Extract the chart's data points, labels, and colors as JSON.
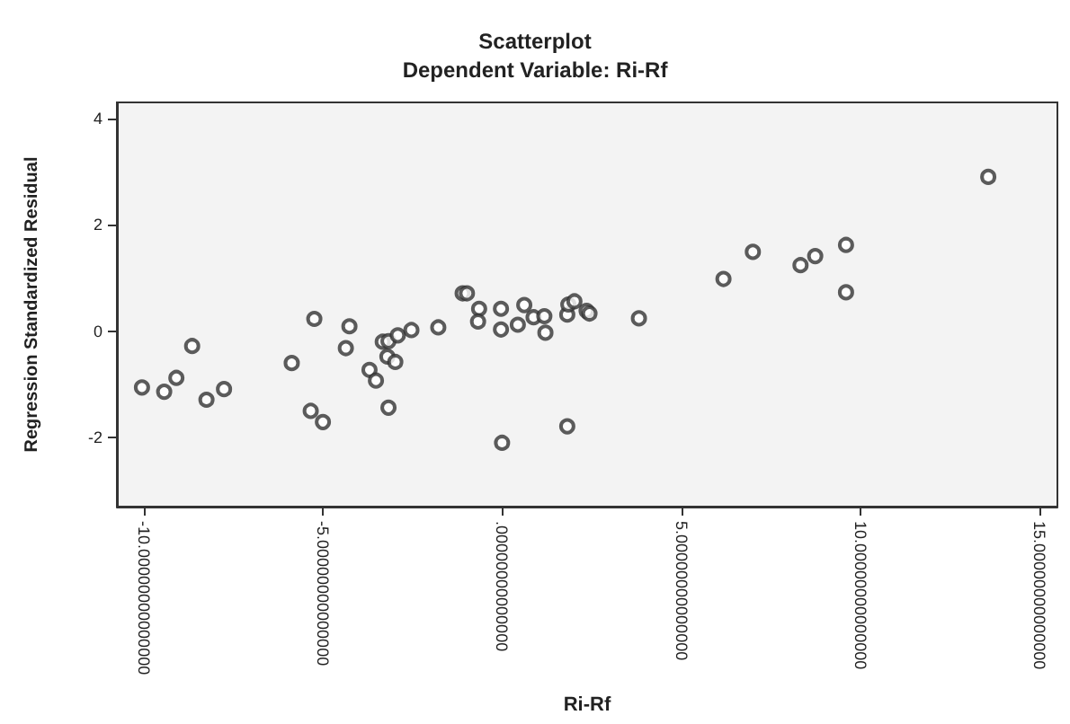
{
  "chart_data": {
    "type": "scatter",
    "title": "Scatterplot",
    "subtitle": "Dependent Variable: Ri-Rf",
    "xlabel": "Ri-Rf",
    "ylabel": "Regression Standardized Residual",
    "marker": "circle",
    "grid": false,
    "xlim": [
      -10.75,
      15.5
    ],
    "ylim": [
      -3.3,
      4.3
    ],
    "xticks": [
      {
        "value": -10,
        "label": "-10.00000000000000"
      },
      {
        "value": -5,
        "label": "-5.00000000000000"
      },
      {
        "value": 0,
        "label": ".00000000000000"
      },
      {
        "value": 5,
        "label": "5.00000000000000"
      },
      {
        "value": 10,
        "label": "10.00000000000000"
      },
      {
        "value": 15,
        "label": "15.00000000000000"
      }
    ],
    "yticks": [
      -2,
      0,
      2,
      4
    ],
    "series": [
      {
        "color": "#333333",
        "x": [
          -10.05,
          -9.43,
          -9.09,
          -8.65,
          -8.25,
          -7.76,
          -5.87,
          -5.24,
          -5.34,
          -5.0,
          -4.26,
          -4.36,
          -3.7,
          -3.52,
          -3.33,
          -3.17,
          -2.91,
          -3.2,
          -2.98,
          -3.17,
          -2.53,
          -1.78,
          -1.1,
          -0.98,
          -0.64,
          -0.67,
          -0.03,
          -0.03,
          0.0,
          0.44,
          0.62,
          0.88,
          1.18,
          1.21,
          1.82,
          1.82,
          1.85,
          2.02,
          2.36,
          2.44,
          3.82,
          6.18,
          7.0,
          8.33,
          8.74,
          9.6,
          9.6,
          13.57
        ],
        "values": [
          -1.06,
          -1.14,
          -0.88,
          -0.28,
          -1.29,
          -1.09,
          -0.6,
          0.23,
          -1.5,
          -1.71,
          0.09,
          -0.32,
          -0.73,
          -0.93,
          -0.2,
          -0.19,
          -0.08,
          -0.48,
          -0.58,
          -1.44,
          0.02,
          0.07,
          0.71,
          0.71,
          0.42,
          0.18,
          0.42,
          0.03,
          -2.1,
          0.12,
          0.49,
          0.26,
          0.28,
          -0.03,
          -1.79,
          0.31,
          0.5,
          0.56,
          0.38,
          0.33,
          0.24,
          0.98,
          1.49,
          1.24,
          1.41,
          1.62,
          0.73,
          2.9
        ]
      }
    ]
  }
}
